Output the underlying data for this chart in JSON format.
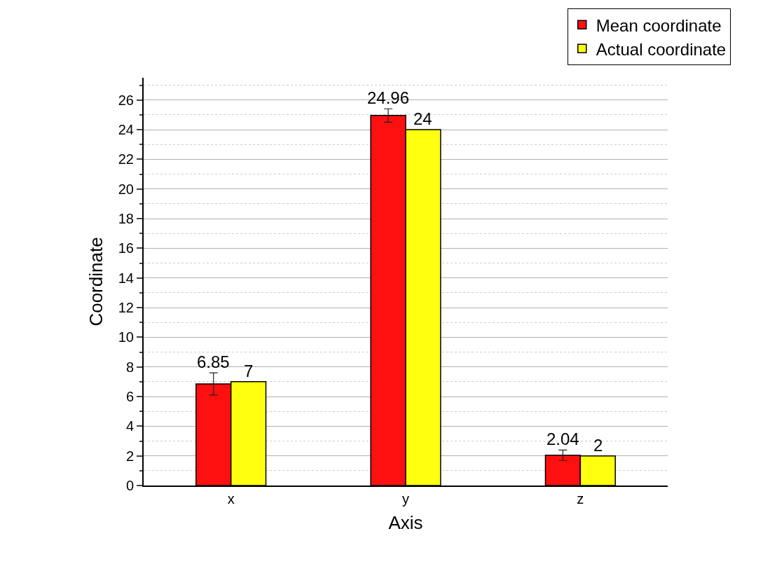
{
  "chart_data": {
    "type": "bar",
    "xlabel": "Axis",
    "ylabel": "Coordinate",
    "categories": [
      "x",
      "y",
      "z"
    ],
    "series": [
      {
        "name": "Mean coordinate",
        "color": "#ff1010",
        "values": [
          6.85,
          24.96,
          2.04
        ],
        "errors": [
          0.75,
          0.45,
          0.35
        ]
      },
      {
        "name": "Actual coordinate",
        "color": "#ffff10",
        "values": [
          7,
          24,
          2
        ]
      }
    ],
    "ylim": [
      0,
      27.5
    ],
    "yticks": [
      0,
      {
        "value": 1,
        "label": null
      },
      2,
      {
        "value": 3,
        "label": null
      },
      4,
      {
        "value": 5,
        "label": null
      },
      6,
      {
        "value": 7,
        "label": null
      },
      8,
      {
        "value": 9,
        "label": null
      },
      10,
      {
        "value": 11,
        "label": null
      },
      12,
      {
        "value": 13,
        "label": null
      },
      14,
      {
        "value": 15,
        "label": null
      },
      16,
      {
        "value": 17,
        "label": null
      },
      18,
      {
        "value": 19,
        "label": null
      },
      20,
      {
        "value": 21,
        "label": null
      },
      22,
      {
        "value": 23,
        "label": null
      },
      24,
      {
        "value": 25,
        "label": null
      },
      26,
      {
        "value": 27,
        "label": null
      }
    ],
    "grid": "y",
    "legend": "top right",
    "data_labels": true
  }
}
